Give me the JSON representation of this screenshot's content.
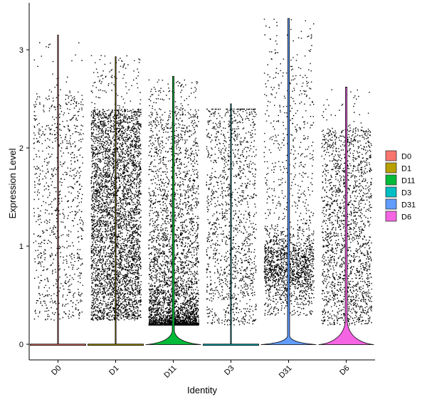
{
  "chart_data": {
    "type": "violin",
    "title": "",
    "xlabel": "Identity",
    "ylabel": "Expression Level",
    "ylim": [
      -0.18,
      3.45
    ],
    "yticks": [
      0,
      1,
      2,
      3
    ],
    "ytick_labels": [
      "0",
      "1",
      "2",
      "3"
    ],
    "grid": false,
    "legend_position": "right",
    "categories": [
      "D0",
      "D1",
      "D11",
      "D3",
      "D31",
      "D6"
    ],
    "series": [
      {
        "name": "D0",
        "color": "#F8766D",
        "max": 3.15,
        "cells": 900,
        "core_range": [
          0.25,
          2.55
        ],
        "upper_limit": 3.1,
        "density": "uniform",
        "zero_bulge": 0.0
      },
      {
        "name": "D1",
        "color": "#B79F00",
        "max": 2.93,
        "cells": 4200,
        "core_range": [
          0.25,
          2.4
        ],
        "upper_limit": 2.95,
        "density": "uniform",
        "zero_bulge": 0.0
      },
      {
        "name": "D11",
        "color": "#00BA38",
        "max": 2.73,
        "cells": 3800,
        "core_range": [
          0.2,
          2.4
        ],
        "upper_limit": 2.7,
        "density": "skewed-low",
        "zero_bulge": 0.14
      },
      {
        "name": "D3",
        "color": "#00BFC4",
        "max": 2.45,
        "cells": 1300,
        "core_range": [
          0.2,
          2.4
        ],
        "upper_limit": 2.4,
        "density": "uniform",
        "zero_bulge": 0.0
      },
      {
        "name": "D31",
        "color": "#619CFF",
        "max": 3.32,
        "cells": 4200,
        "core_range": [
          0.3,
          2.8
        ],
        "upper_limit": 3.32,
        "density": "peaked-mid-low",
        "zero_bulge": 0.09
      },
      {
        "name": "D6",
        "color": "#F564E3",
        "max": 2.62,
        "cells": 1800,
        "core_range": [
          0.2,
          2.2
        ],
        "upper_limit": 2.6,
        "density": "uniform",
        "zero_bulge": 0.23
      }
    ]
  }
}
